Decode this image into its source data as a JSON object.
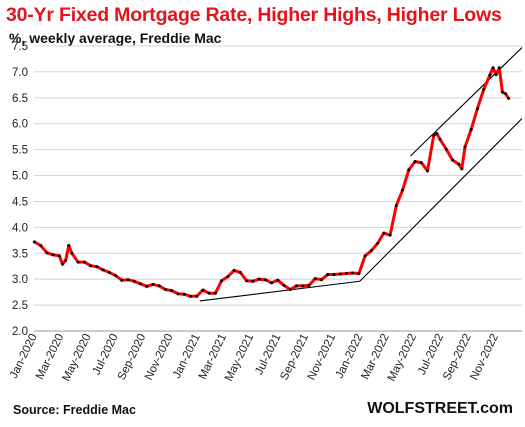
{
  "header": {
    "title": "30-Yr Fixed Mortgage Rate, Higher Highs, Higher Lows",
    "subtitle": "%, weekly average, Freddie Mac"
  },
  "footer": {
    "source": "Source: Freddie Mac",
    "brand": "WOLFSTREET.com"
  },
  "chart_data": {
    "type": "line",
    "title": "30-Yr Fixed Mortgage Rate, Higher Highs, Higher Lows",
    "subtitle": "%, weekly average, Freddie Mac",
    "xlabel": "",
    "ylabel": "",
    "ylim": [
      2.0,
      7.5
    ],
    "xlim": [
      "2020-01-01",
      "2022-12-31"
    ],
    "yticks": [
      "2.0",
      "2.5",
      "3.0",
      "3.5",
      "4.0",
      "4.5",
      "5.0",
      "5.5",
      "6.0",
      "6.5",
      "7.0",
      "7.5"
    ],
    "xtick_labels": [
      "Jan-2020",
      "Mar-2020",
      "May-2020",
      "Jul-2020",
      "Sep-2020",
      "Nov-2020",
      "Jan-2021",
      "Mar-2021",
      "May-2021",
      "Jul-2021",
      "Sep-2021",
      "Nov-2021",
      "Jan-2022",
      "Mar-2022",
      "May-2022",
      "Jul-2022",
      "Sep-2022",
      "Nov-2022"
    ],
    "xtick_dates": [
      "2020-01-01",
      "2020-03-01",
      "2020-05-01",
      "2020-07-01",
      "2020-09-01",
      "2020-11-01",
      "2021-01-01",
      "2021-03-01",
      "2021-05-01",
      "2021-07-01",
      "2021-09-01",
      "2021-11-01",
      "2022-01-01",
      "2022-03-01",
      "2022-05-01",
      "2022-07-01",
      "2022-09-01",
      "2022-11-01"
    ],
    "grid": "horizontal",
    "line_color": "#ff0000",
    "marker_color": "#000000",
    "trendline_color": "#000000",
    "series": [
      {
        "x": [
          "2020-01-02",
          "2020-01-16",
          "2020-01-30",
          "2020-02-13",
          "2020-02-27",
          "2020-03-05",
          "2020-03-12",
          "2020-03-19",
          "2020-03-26",
          "2020-04-09",
          "2020-04-23",
          "2020-05-07",
          "2020-05-21",
          "2020-06-04",
          "2020-06-18",
          "2020-07-02",
          "2020-07-16",
          "2020-07-30",
          "2020-08-13",
          "2020-08-27",
          "2020-09-10",
          "2020-09-24",
          "2020-10-08",
          "2020-10-22",
          "2020-11-05",
          "2020-11-19",
          "2020-12-03",
          "2020-12-17",
          "2020-12-31",
          "2021-01-14",
          "2021-01-28",
          "2021-02-11",
          "2021-02-25",
          "2021-03-11",
          "2021-03-25",
          "2021-04-08",
          "2021-04-22",
          "2021-05-06",
          "2021-05-20",
          "2021-06-03",
          "2021-06-17",
          "2021-07-01",
          "2021-07-15",
          "2021-07-29",
          "2021-08-12",
          "2021-08-26",
          "2021-09-09",
          "2021-09-23",
          "2021-10-07",
          "2021-10-21",
          "2021-11-04",
          "2021-11-18",
          "2021-12-02",
          "2021-12-16",
          "2021-12-30",
          "2022-01-13",
          "2022-01-27",
          "2022-02-10",
          "2022-02-24",
          "2022-03-10",
          "2022-03-24",
          "2022-04-07",
          "2022-04-21",
          "2022-05-05",
          "2022-05-19",
          "2022-06-02",
          "2022-06-16",
          "2022-06-23",
          "2022-06-30",
          "2022-07-14",
          "2022-07-28",
          "2022-08-11",
          "2022-08-18",
          "2022-08-25",
          "2022-09-08",
          "2022-09-22",
          "2022-10-06",
          "2022-10-20",
          "2022-10-27",
          "2022-11-03",
          "2022-11-10",
          "2022-11-17",
          "2022-11-24",
          "2022-12-01"
        ],
        "values": [
          3.72,
          3.65,
          3.51,
          3.47,
          3.45,
          3.29,
          3.36,
          3.65,
          3.5,
          3.33,
          3.33,
          3.26,
          3.24,
          3.18,
          3.13,
          3.07,
          2.98,
          2.99,
          2.96,
          2.91,
          2.86,
          2.9,
          2.87,
          2.8,
          2.78,
          2.72,
          2.71,
          2.67,
          2.67,
          2.79,
          2.73,
          2.73,
          2.97,
          3.05,
          3.17,
          3.13,
          2.97,
          2.96,
          3.0,
          2.99,
          2.93,
          2.98,
          2.88,
          2.8,
          2.87,
          2.87,
          2.88,
          3.01,
          2.99,
          3.09,
          3.09,
          3.1,
          3.11,
          3.12,
          3.11,
          3.45,
          3.55,
          3.69,
          3.89,
          3.85,
          4.42,
          4.72,
          5.11,
          5.27,
          5.25,
          5.09,
          5.78,
          5.81,
          5.7,
          5.51,
          5.3,
          5.22,
          5.13,
          5.55,
          5.89,
          6.29,
          6.66,
          6.94,
          7.08,
          6.95,
          7.08,
          6.61,
          6.58,
          6.49
        ]
      }
    ],
    "trendlines": [
      {
        "x": [
          "2021-01-07",
          "2022-01-01"
        ],
        "y": [
          2.58,
          2.96
        ]
      },
      {
        "x": [
          "2022-01-01",
          "2022-12-31"
        ],
        "y": [
          2.96,
          6.1
        ]
      },
      {
        "x": [
          "2022-04-25",
          "2022-12-31"
        ],
        "y": [
          5.38,
          7.47
        ]
      }
    ]
  }
}
